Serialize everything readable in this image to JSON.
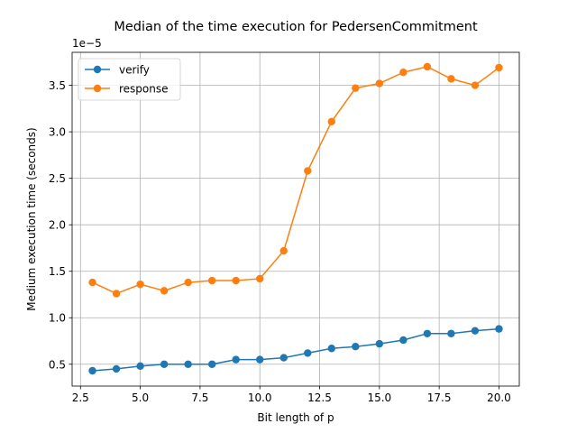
{
  "chart_data": {
    "type": "line",
    "title": "Median of the time execution for PedersenCommitment",
    "xlabel": "Bit length of p",
    "ylabel": "Medium execution time (seconds)",
    "y_offset_label": "1e−5",
    "xlim": [
      2.15,
      20.85
    ],
    "ylim": [
      0.265,
      3.855
    ],
    "x_ticks": [
      2.5,
      5.0,
      7.5,
      10.0,
      12.5,
      15.0,
      17.5,
      20.0
    ],
    "x_tick_labels": [
      "2.5",
      "5.0",
      "7.5",
      "10.0",
      "12.5",
      "15.0",
      "17.5",
      "20.0"
    ],
    "y_ticks": [
      0.5,
      1.0,
      1.5,
      2.0,
      2.5,
      3.0,
      3.5
    ],
    "y_tick_labels": [
      "0.5",
      "1.0",
      "1.5",
      "2.0",
      "2.5",
      "3.0",
      "3.5"
    ],
    "grid": true,
    "legend_position": "top-left",
    "x": [
      3,
      4,
      5,
      6,
      7,
      8,
      9,
      10,
      11,
      12,
      13,
      14,
      15,
      16,
      17,
      18,
      19,
      20
    ],
    "series": [
      {
        "name": "verify",
        "color": "#1f77b4",
        "values": [
          0.43,
          0.45,
          0.48,
          0.5,
          0.5,
          0.5,
          0.55,
          0.55,
          0.57,
          0.62,
          0.67,
          0.69,
          0.72,
          0.76,
          0.83,
          0.83,
          0.86,
          0.88
        ]
      },
      {
        "name": "response",
        "color": "#ff7f0e",
        "values": [
          1.38,
          1.26,
          1.36,
          1.29,
          1.38,
          1.4,
          1.4,
          1.42,
          1.72,
          2.58,
          3.11,
          3.47,
          3.52,
          3.64,
          3.7,
          3.57,
          3.5,
          3.69
        ]
      }
    ]
  }
}
